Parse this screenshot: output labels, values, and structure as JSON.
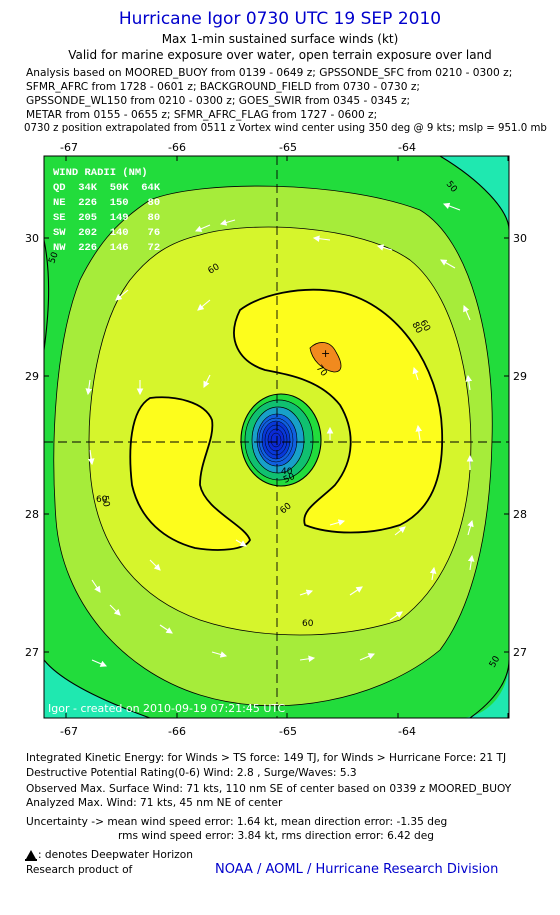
{
  "title": "Hurricane Igor 0730 UTC 19 SEP 2010",
  "subtitle_1": "Max 1-min sustained surface winds (kt)",
  "subtitle_2": "Valid for marine exposure over water, open terrain exposure over land",
  "analysis_lines": [
    "Analysis based on MOORED_BUOY from 0139 - 0649 z; GPSSONDE_SFC from 0210 - 0300 z;",
    "SFMR_AFRC from 1728 - 0601 z; BACKGROUND_FIELD from 0730 - 0730 z;",
    "GPSSONDE_WL150 from 0210 - 0300 z; GOES_SWIR from 0345 - 0345 z;",
    "METAR from 0155 - 0655 z; SFMR_AFRC_FLAG from 1727 - 0600 z;",
    "0730 z position extrapolated from 0511 z Vortex wind center using 350 deg @ 9 kts; mslp = 951.0 mb"
  ],
  "map": {
    "x_ticks": [
      "-67",
      "-66",
      "-65",
      "-64"
    ],
    "y_ticks": [
      "30",
      "29",
      "28",
      "27"
    ],
    "wind_radii": {
      "header": "WIND RADII (NM)",
      "columns": "QD  34K  50K  64K",
      "rows": [
        "NE  226  150   80",
        "SE  205  149   80",
        "SW  202  140   76",
        "NW  226  146   72"
      ]
    },
    "contour_labels": [
      "50",
      "50",
      "50",
      "50",
      "60",
      "60",
      "60",
      "60",
      "60",
      "70",
      "80",
      "40",
      "50"
    ],
    "footer": "Igor - created on 2010-09-19 07:21:45 UTC",
    "colors": {
      "cyan": "#1fe8b0",
      "green": "#22dc3c",
      "light_green": "#a6ec3a",
      "yellow_green": "#d6f52c",
      "yellow": "#fdfd1c",
      "orange": "#f18a1e",
      "eye_blue": "#0a2ad6"
    }
  },
  "stats": {
    "ike": "Integrated Kinetic Energy:  for Winds > TS force: 149 TJ,  for Winds > Hurricane Force: 21 TJ",
    "dpr": "Destructive Potential Rating(0-6)   Wind: 2.8 , Surge/Waves: 5.3",
    "observed": "Observed Max. Surface Wind: 71 kts, 110 nm SE of center based on 0339 z MOORED_BUOY",
    "analyzed": "Analyzed Max. Wind: 71 kts, 45 nm NE of center",
    "uncertainty_1": "Uncertainty -> mean wind speed error: 1.64 kt,   mean direction error:  -1.35 deg",
    "uncertainty_2": "rms wind speed error: 3.84 kt,   rms direction error: 6.42 deg",
    "dwh": ": denotes Deepwater Horizon",
    "research": "Research product of",
    "org": "NOAA / AOML / Hurricane Research Division"
  }
}
